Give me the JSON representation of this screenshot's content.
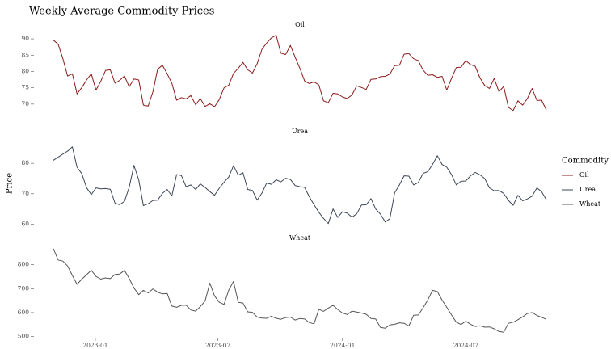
{
  "chart_data": {
    "type": "line",
    "title": "Weekly Average Commodity Prices",
    "xlabel": "",
    "ylabel": "Price",
    "x_start": "2022-10-31",
    "x_interval": "1 week",
    "x_ticks": [
      "2023-01",
      "2023-07",
      "2024-01",
      "2024-07"
    ],
    "legend": {
      "title": "Commodity",
      "placement": "right",
      "entries": [
        {
          "name": "Oil",
          "color": "#8b1a1a"
        },
        {
          "name": "Urea",
          "color": "#3d4656"
        },
        {
          "name": "Wheat",
          "color": "#555555"
        }
      ]
    },
    "facets": [
      {
        "name": "Oil",
        "color": "#8b1a1a",
        "ylim": [
          66,
          92
        ],
        "yticks": [
          70,
          75,
          80,
          85,
          90
        ],
        "values": [
          89.6,
          88.4,
          84.0,
          78.6,
          79.3,
          73.1,
          75.1,
          77.4,
          79.3,
          74.3,
          77.0,
          80.3,
          80.5,
          76.4,
          77.3,
          78.6,
          75.3,
          77.7,
          77.4,
          69.7,
          69.4,
          73.8,
          80.7,
          81.9,
          79.3,
          76.4,
          71.2,
          72.0,
          71.6,
          72.6,
          69.8,
          71.7,
          69.3,
          70.1,
          69.2,
          71.4,
          75.0,
          75.8,
          79.4,
          81.0,
          82.8,
          80.5,
          79.5,
          82.4,
          86.8,
          88.7,
          90.3,
          91.1,
          85.6,
          85.2,
          88.0,
          84.4,
          81.0,
          77.1,
          76.3,
          76.8,
          75.9,
          71.0,
          70.4,
          73.3,
          73.1,
          72.2,
          71.7,
          72.8,
          75.6,
          75.1,
          74.5,
          77.6,
          77.7,
          78.4,
          78.5,
          79.2,
          81.8,
          81.9,
          85.3,
          85.5,
          83.9,
          83.3,
          80.4,
          78.8,
          79.0,
          78.2,
          78.5,
          74.3,
          77.9,
          81.2,
          81.3,
          83.3,
          82.1,
          81.6,
          78.0,
          75.7,
          74.8,
          77.9,
          73.8,
          75.4,
          69.0,
          68.0,
          71.0,
          69.7,
          71.7,
          74.8,
          71.1,
          71.2,
          68.2
        ]
      },
      {
        "name": "Urea",
        "color": "#3d4656",
        "ylim": [
          58,
          88
        ],
        "yticks": [
          60,
          70,
          80
        ],
        "values": [
          81.0,
          82.0,
          83.0,
          84.0,
          85.4,
          78.7,
          76.6,
          72.0,
          69.7,
          71.9,
          71.6,
          71.7,
          71.5,
          66.9,
          66.4,
          67.5,
          72.1,
          79.3,
          74.6,
          66.1,
          66.7,
          67.8,
          67.9,
          70.1,
          71.4,
          69.3,
          76.3,
          76.0,
          72.3,
          72.9,
          71.4,
          73.2,
          72.1,
          70.7,
          69.5,
          71.8,
          73.8,
          75.5,
          79.2,
          76.1,
          76.9,
          71.4,
          71.1,
          67.9,
          70.2,
          73.5,
          73.1,
          74.6,
          73.9,
          75.1,
          74.7,
          72.7,
          72.3,
          72.1,
          69.0,
          66.4,
          63.9,
          61.9,
          60.2,
          65.0,
          62.2,
          64.1,
          63.6,
          62.3,
          63.4,
          66.3,
          66.4,
          68.4,
          65.0,
          63.3,
          60.7,
          61.8,
          70.3,
          72.9,
          75.9,
          75.8,
          72.9,
          73.7,
          76.7,
          77.3,
          79.6,
          82.5,
          79.6,
          78.7,
          76.3,
          72.9,
          74.1,
          74.2,
          75.9,
          77.0,
          76.2,
          75.0,
          71.9,
          71.0,
          71.1,
          70.1,
          67.8,
          66.2,
          69.5,
          67.7,
          68.3,
          69.2,
          71.9,
          70.7,
          68.0
        ]
      },
      {
        "name": "Wheat",
        "color": "#555555",
        "ylim": [
          495,
          880
        ],
        "yticks": [
          500,
          600,
          700,
          800
        ],
        "values": [
          867,
          820,
          815,
          795,
          755,
          718,
          740,
          758,
          777,
          751,
          740,
          745,
          742,
          759,
          761,
          776,
          743,
          703,
          675,
          693,
          682,
          699,
          685,
          678,
          680,
          627,
          622,
          630,
          631,
          611,
          606,
          625,
          648,
          723,
          670,
          643,
          634,
          694,
          730,
          643,
          640,
          603,
          601,
          581,
          577,
          576,
          585,
          576,
          572,
          579,
          581,
          569,
          575,
          573,
          558,
          553,
          614,
          605,
          619,
          630,
          613,
          598,
          592,
          606,
          602,
          598,
          593,
          575,
          573,
          538,
          535,
          548,
          551,
          557,
          555,
          544,
          589,
          590,
          620,
          653,
          693,
          688,
          652,
          622,
          590,
          560,
          550,
          564,
          551,
          542,
          545,
          539,
          540,
          532,
          521,
          518,
          555,
          560,
          570,
          582,
          596,
          600,
          588,
          580,
          572
        ]
      }
    ]
  }
}
